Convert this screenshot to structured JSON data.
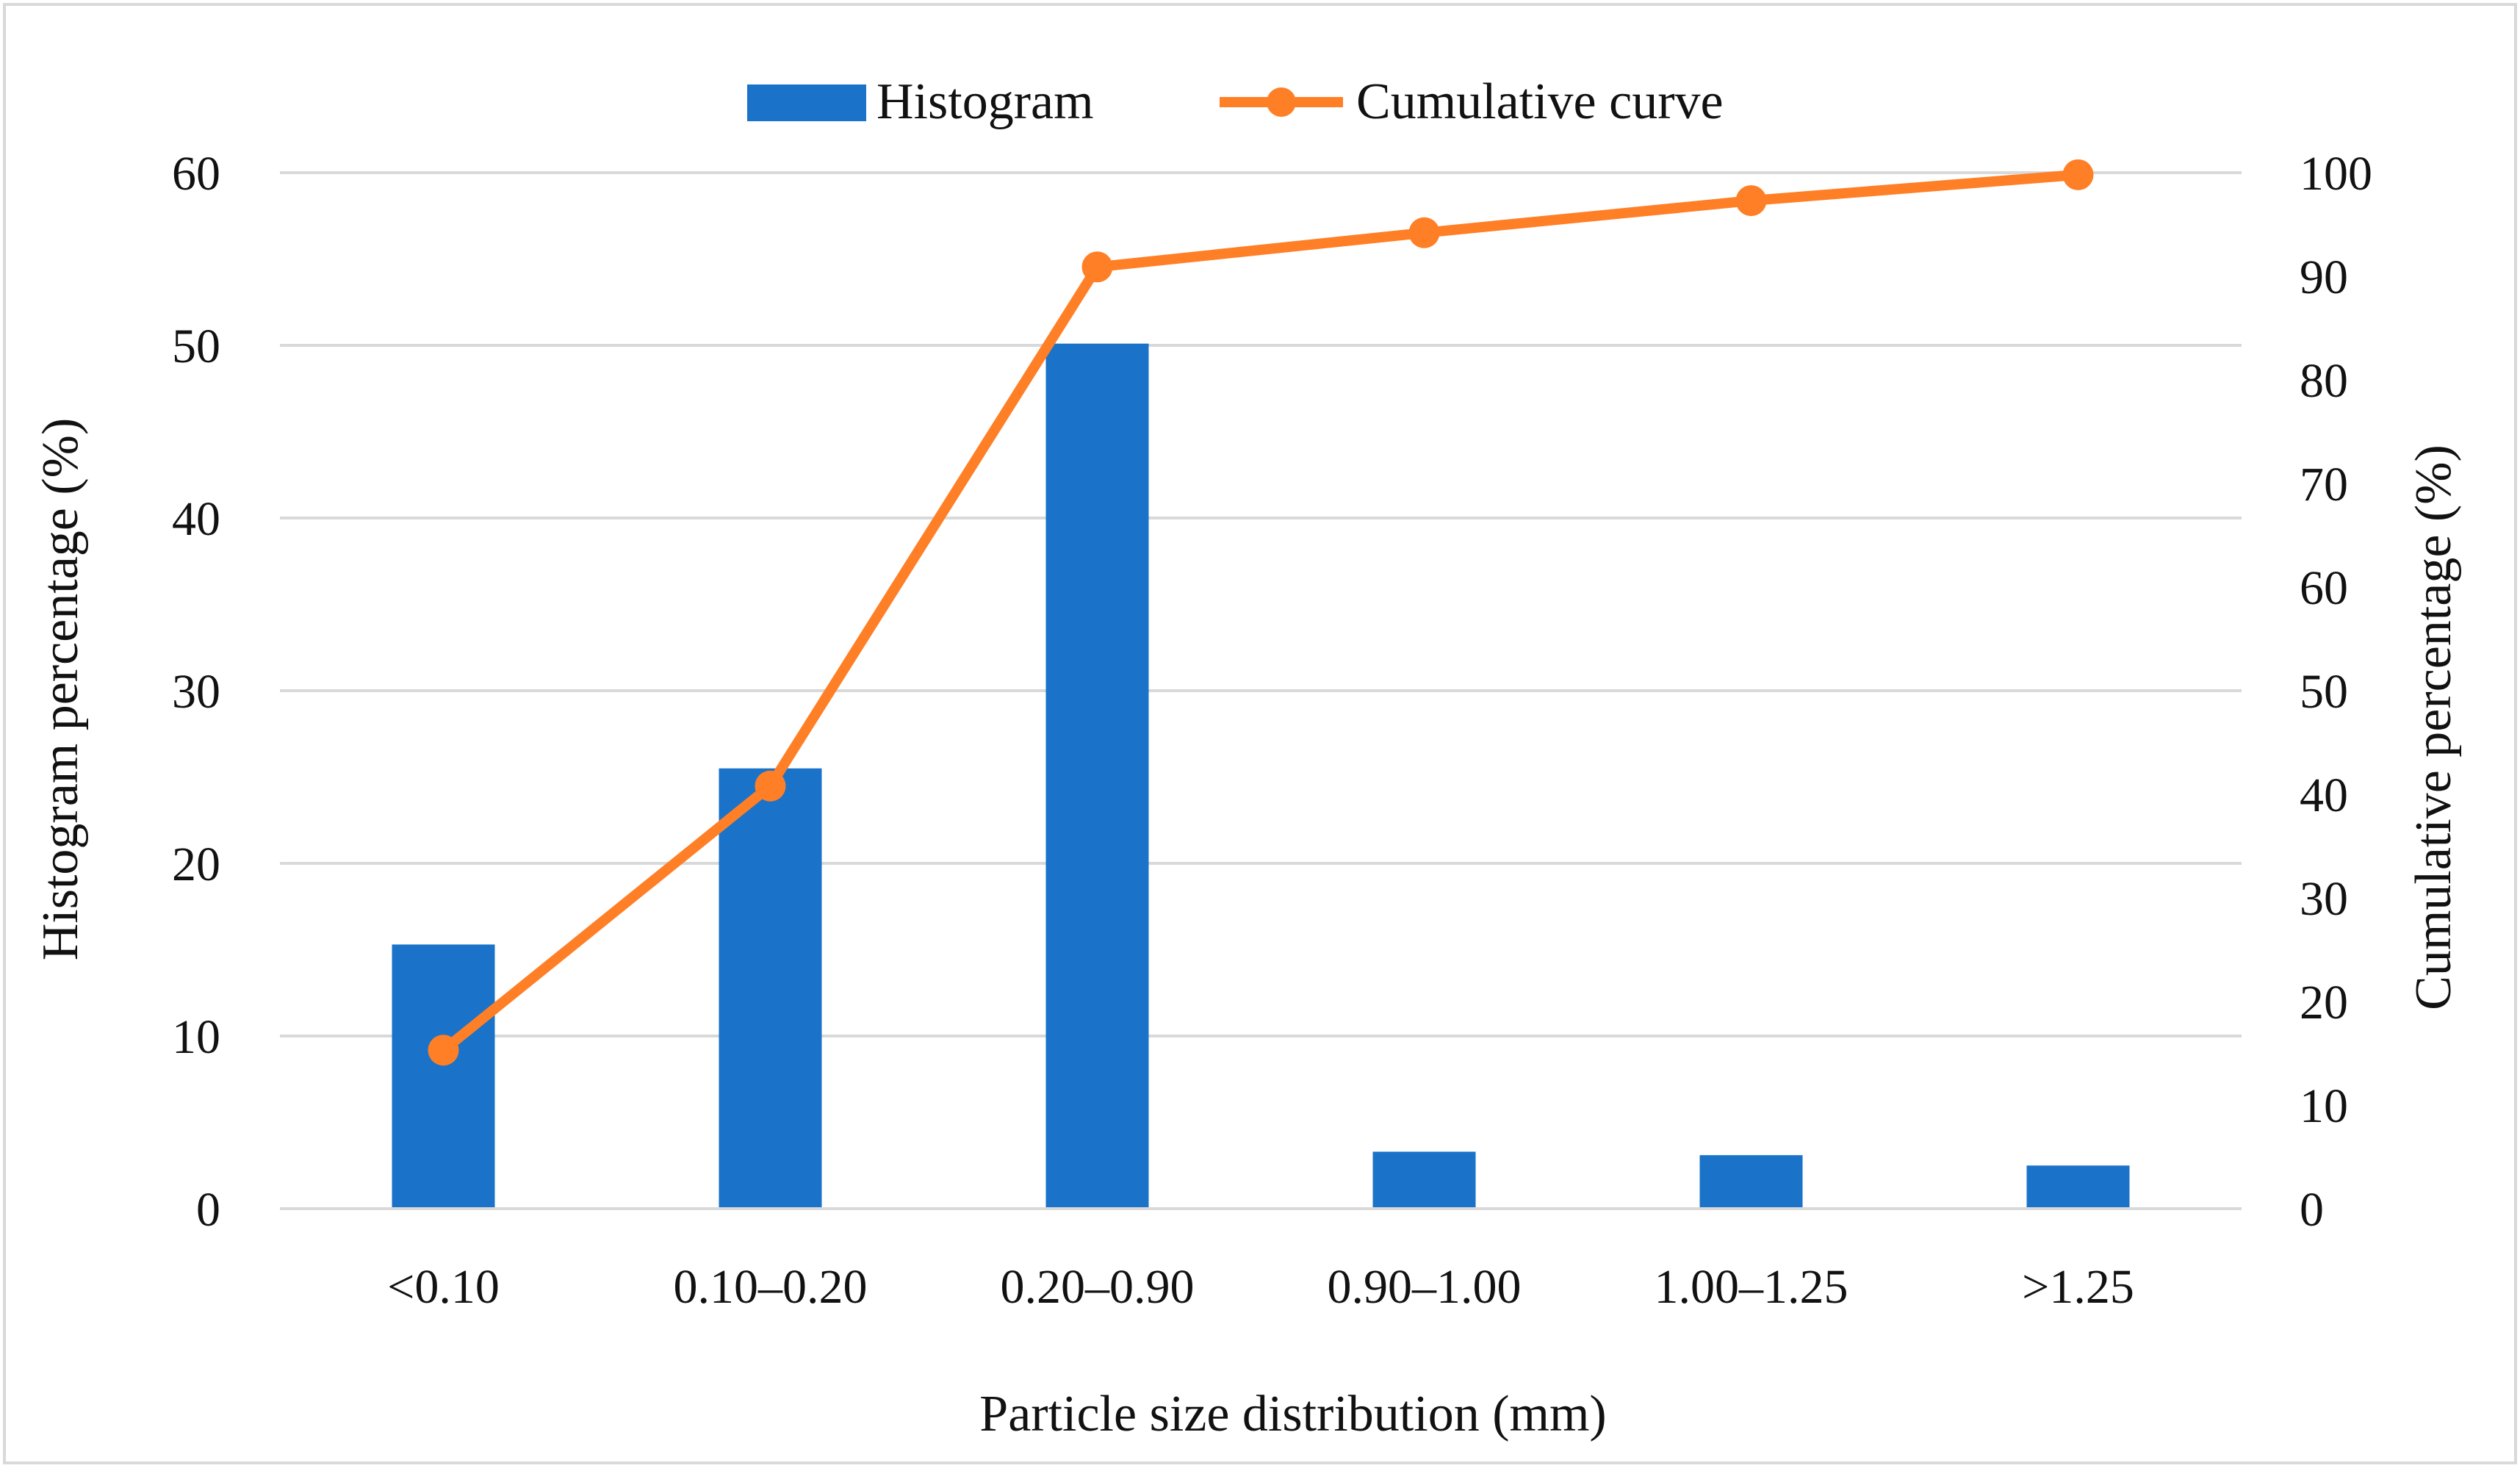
{
  "chart_data": {
    "type": "bar",
    "title": "",
    "categories": [
      "<0.10",
      "0.10–0.20",
      "0.20–0.90",
      "0.90–1.00",
      "1.00–1.25",
      ">1.25"
    ],
    "series": [
      {
        "name": "Histogram",
        "type": "bar",
        "axis": "left",
        "color": "#1a73c8",
        "values": [
          15.3,
          25.5,
          50.1,
          3.3,
          3.1,
          2.5
        ]
      },
      {
        "name": "Cumulative curve",
        "type": "line",
        "axis": "right",
        "color": "#ff7f27",
        "values": [
          15.3,
          40.8,
          90.9,
          94.2,
          97.3,
          99.8
        ]
      }
    ],
    "xlabel": "Particle size distribution (mm)",
    "ylabel": "Histogram percentage (%)",
    "y2label": "Cumulative percentage (%)",
    "ylim": [
      0,
      60
    ],
    "y2lim": [
      0,
      100
    ],
    "yticks": [
      "0",
      "10",
      "20",
      "30",
      "40",
      "50",
      "60"
    ],
    "y2ticks": [
      "0",
      "10",
      "20",
      "30",
      "40",
      "50",
      "60",
      "70",
      "80",
      "90",
      "100"
    ],
    "grid": true,
    "legend": "top-center"
  }
}
